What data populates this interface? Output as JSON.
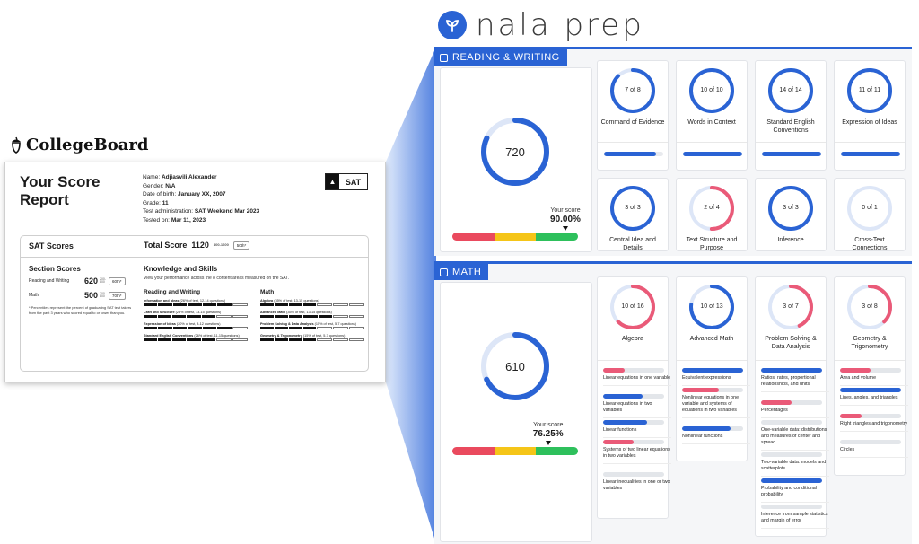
{
  "nala": {
    "brand": "nala prep",
    "accent": "#2a63d4",
    "icon": "leaf-logo-icon"
  },
  "collegeboard": {
    "brand": "CollegeBoard",
    "icon": "acorn-logo-icon",
    "title": "Your Score Report",
    "info": [
      {
        "label": "Name: ",
        "value": "Adjiasvili Alexander"
      },
      {
        "label": "Gender: ",
        "value": "N/A"
      },
      {
        "label": "Date of birth: ",
        "value": "January XX, 2007"
      },
      {
        "label": "Grade: ",
        "value": "11"
      },
      {
        "label": "Test administration: ",
        "value": "SAT Weekend Mar 2023"
      },
      {
        "label": "Tested on: ",
        "value": "Mar 11, 2023"
      }
    ],
    "sat_badge": "SAT",
    "sat_scores_label": "SAT Scores",
    "total_label": "Total Score",
    "total_value": "1120",
    "total_range": "400-1600",
    "total_pct": "50th*",
    "section_title": "Section Scores",
    "sections": [
      {
        "label": "Reading and Writing",
        "score": "620",
        "range": "200-800",
        "pct": "60th*"
      },
      {
        "label": "Math",
        "score": "500",
        "range": "200-800",
        "pct": "70th*"
      }
    ],
    "footnote": "* Percentiles represent the percent of graduating SAT test takers from the past 3 years who scored equal to or lower than you.",
    "ks_title": "Knowledge and Skills",
    "ks_desc": "View your performance across the 8 content areas measured on the SAT.",
    "rw_title": "Reading and Writing",
    "rw_items": [
      {
        "name": "Information and Ideas",
        "meta": "(26% of test, 12-14 questions)",
        "filled": 6
      },
      {
        "name": "Craft and Structure",
        "meta": "(28% of test, 13-15 questions)",
        "filled": 5
      },
      {
        "name": "Expression of Ideas",
        "meta": "(20% of test, 8-12 questions)",
        "filled": 6
      },
      {
        "name": "Standard English Conventions",
        "meta": "(26% of test, 11-15 questions)",
        "filled": 5
      }
    ],
    "math_title": "Math",
    "math_items": [
      {
        "name": "Algebra",
        "meta": "(35% of test, 13-15 questions)",
        "filled": 4
      },
      {
        "name": "Advanced Math",
        "meta": "(35% of test, 13-15 questions)",
        "filled": 5
      },
      {
        "name": "Problem Solving & Data Analysis",
        "meta": "(15% of test, 5-7 questions)",
        "filled": 4
      },
      {
        "name": "Geometry & Trigonometry",
        "meta": "(15% of test, 5-7 questions)",
        "filled": 4
      }
    ]
  },
  "rw_panel": {
    "tab": "READING & WRITING",
    "score": "720",
    "score_fraction": 0.82,
    "your_score_label": "Your score",
    "your_score_pct": "90.00%",
    "marker_fraction": 0.9,
    "skills": [
      {
        "ratio": "7 of 8",
        "name": "Command of Evidence",
        "fraction": 0.875,
        "color": "#2a63d4",
        "bar": 0.88
      },
      {
        "ratio": "10 of 10",
        "name": "Words in Context",
        "fraction": 1.0,
        "color": "#2a63d4",
        "bar": 1.0
      },
      {
        "ratio": "14 of 14",
        "name": "Standard English Conventions",
        "fraction": 1.0,
        "color": "#2a63d4",
        "bar": 1.0
      },
      {
        "ratio": "11 of 11",
        "name": "Expression of Ideas",
        "fraction": 1.0,
        "color": "#2a63d4",
        "bar": 1.0
      },
      {
        "ratio": "3 of 3",
        "name": "Central Idea and Details",
        "fraction": 1.0,
        "color": "#2a63d4"
      },
      {
        "ratio": "2 of 4",
        "name": "Text Structure and Purpose",
        "fraction": 0.5,
        "color": "#ea5a78"
      },
      {
        "ratio": "3 of 3",
        "name": "Inference",
        "fraction": 1.0,
        "color": "#2a63d4"
      },
      {
        "ratio": "0 of 1",
        "name": "Cross-Text Connections",
        "fraction": 0.0,
        "color": "#ea5a78"
      }
    ]
  },
  "math_panel": {
    "tab": "MATH",
    "score": "610",
    "score_fraction": 0.68,
    "your_score_label": "Your score",
    "your_score_pct": "76.25%",
    "marker_fraction": 0.7625,
    "skills": [
      {
        "ratio": "10 of 16",
        "name": "Algebra",
        "fraction": 0.625,
        "color": "#ea5a78",
        "subs": [
          {
            "text": "Linear equations in one variable",
            "value": 0.35,
            "color": "#ea5a78"
          },
          {
            "text": "Linear equations in two variables",
            "value": 0.65,
            "color": "#2a63d4"
          },
          {
            "text": "Linear functions",
            "value": 0.72,
            "color": "#2a63d4"
          },
          {
            "text": "Systems of two linear equations in two variables",
            "value": 0.5,
            "color": "#ea5a78"
          },
          {
            "text": "Linear inequalities in one or two variables",
            "value": 0.0,
            "color": "#2a63d4"
          }
        ]
      },
      {
        "ratio": "10 of 13",
        "name": "Advanced Math",
        "fraction": 0.77,
        "color": "#2a63d4",
        "subs": [
          {
            "text": "Equivalent expressions",
            "value": 1.0,
            "color": "#2a63d4"
          },
          {
            "text": "Nonlinear equations in one variable and systems of equations in two variables",
            "value": 0.6,
            "color": "#ea5a78"
          },
          {
            "text": "Nonlinear functions",
            "value": 0.8,
            "color": "#2a63d4"
          }
        ]
      },
      {
        "ratio": "3 of 7",
        "name": "Problem Solving & Data Analysis",
        "fraction": 0.43,
        "color": "#ea5a78",
        "subs": [
          {
            "text": "Ratios, rates, proportional relationships, and units",
            "value": 1.0,
            "color": "#2a63d4"
          },
          {
            "text": "Percentages",
            "value": 0.5,
            "color": "#ea5a78"
          },
          {
            "text": "One-variable data: distributions and measures of center and spread",
            "value": 0.0,
            "color": "#2a63d4"
          },
          {
            "text": "Two-variable data: models and scatterplots",
            "value": 0.0,
            "color": "#2a63d4"
          },
          {
            "text": "Probability and conditional probability",
            "value": 1.0,
            "color": "#2a63d4"
          },
          {
            "text": "Inference from sample statistics and margin of error",
            "value": 0.0,
            "color": "#2a63d4"
          }
        ]
      },
      {
        "ratio": "3 of 8",
        "name": "Geometry & Trigonometry",
        "fraction": 0.375,
        "color": "#ea5a78",
        "subs": [
          {
            "text": "Area and volume",
            "value": 0.5,
            "color": "#ea5a78"
          },
          {
            "text": "Lines, angles, and triangles",
            "value": 1.0,
            "color": "#2a63d4"
          },
          {
            "text": "Right triangles and trigonometry",
            "value": 0.35,
            "color": "#ea5a78"
          },
          {
            "text": "Circles",
            "value": 0.0,
            "color": "#2a63d4"
          }
        ]
      }
    ]
  },
  "score_bar_colors": [
    "#ea4a5e",
    "#f5c518",
    "#2ec05c"
  ]
}
